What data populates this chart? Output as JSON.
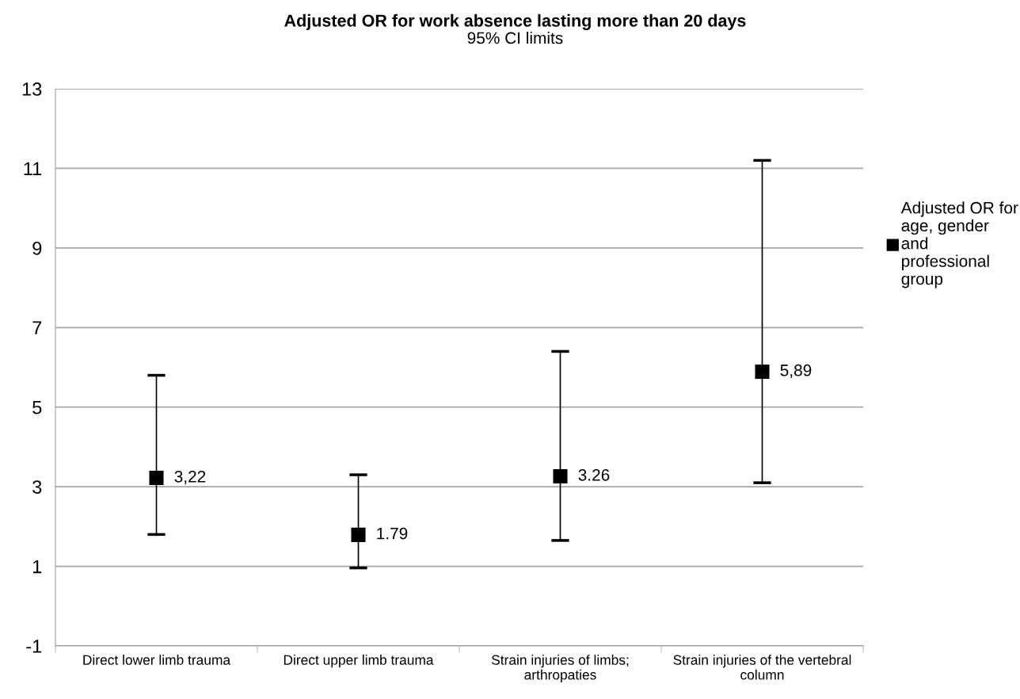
{
  "chart_data": {
    "type": "scatter",
    "title": "Adjusted OR for work absence lasting more than 20 days",
    "subtitle": "95% CI limits",
    "categories": [
      "Direct lower limb trauma",
      "Direct upper limb trauma",
      "Strain injuries of limbs; arthropaties",
      "Strain injuries of the vertebral column"
    ],
    "series": [
      {
        "name": "Adjusted OR for age, gender and professional group",
        "color": "#000000",
        "values": [
          3.22,
          1.79,
          3.26,
          5.89
        ],
        "errors": [
          [
            1.8,
            5.8
          ],
          [
            0.96,
            3.3
          ],
          [
            1.65,
            6.4
          ],
          [
            3.1,
            11.2
          ]
        ],
        "value_labels": [
          "3,22",
          "1.79",
          "3.26",
          "5,89"
        ]
      }
    ],
    "ylim": [
      -1,
      13
    ],
    "yticks": [
      -1,
      1,
      3,
      5,
      7,
      9,
      11,
      13
    ],
    "grid": "y",
    "legend": "right",
    "marker": "square"
  }
}
